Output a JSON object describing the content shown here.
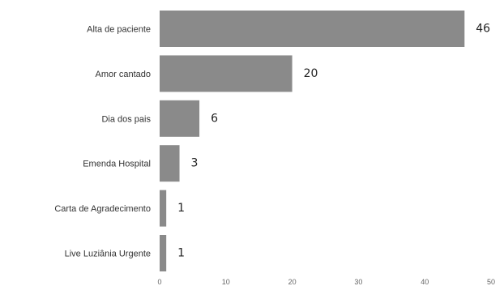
{
  "chart_data": {
    "type": "bar",
    "orientation": "horizontal",
    "categories": [
      "Alta de paciente",
      "Amor cantado",
      "Dia dos pais",
      "Emenda Hospital",
      "Carta de Agradecimento",
      "Live Luziânia Urgente"
    ],
    "values": [
      46,
      20,
      6,
      3,
      1,
      1
    ],
    "xticks": [
      0,
      10,
      20,
      30,
      40,
      50
    ],
    "xlim": [
      0,
      50
    ],
    "bar_color": "#8a8a8a",
    "grid": false
  }
}
